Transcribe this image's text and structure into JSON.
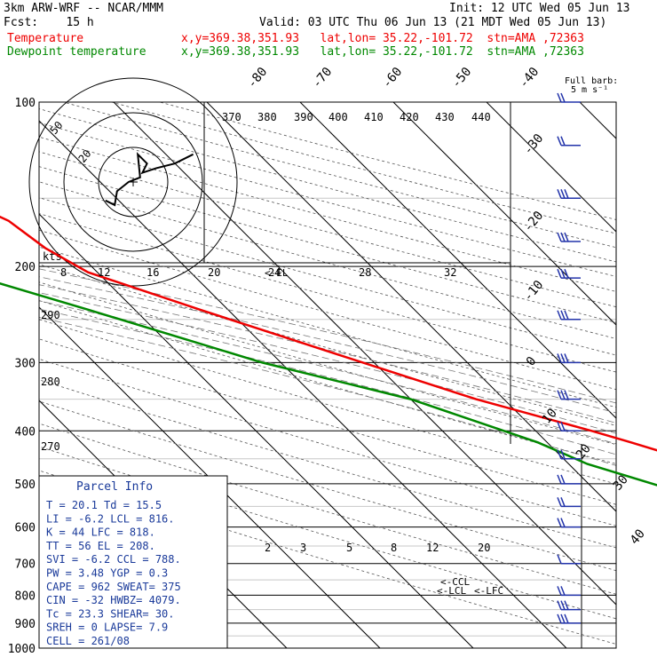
{
  "header": {
    "model": "3km ARW-WRF -- NCAR/MMM",
    "init": "Init: 12 UTC Wed 05 Jun 13",
    "fcst": "Fcst:    15 h",
    "valid": "Valid: 03 UTC Thu 06 Jun 13 (21 MDT Wed 05 Jun 13)",
    "temp_legend": "Temperature",
    "dew_legend": "Dewpoint temperature",
    "temp_loc": "x,y=369.38,351.93   lat,lon= 35.22,-101.72  stn=AMA ,72363",
    "dew_loc": "x,y=369.38,351.93   lat,lon= 35.22,-101.72  stn=AMA ,72363",
    "temp_color": "#ee0000",
    "dew_color": "#008800"
  },
  "parcel": {
    "title": "Parcel Info",
    "rows": [
      "T  =   20.1  Td =  15.5",
      "LI =   -6.2  LCL =  816.",
      "K  =     44  LFC = 818.",
      "TT =     56  EL  =  208.",
      "SVI =  -6.2  CCL = 788.",
      "PW =   3.48  YGP =  0.3",
      "CAPE =  962  SWEAT=  375",
      "CIN =   -32  HWBZ= 4079.",
      "Tc =   23.3  SHEAR=  30.",
      "SREH =    0  LAPSE=  7.9",
      "CELL = 261/08"
    ]
  },
  "barb_legend": {
    "title": "Full barb:",
    "value": "5 m s⁻¹"
  },
  "hodograph": {
    "speed_unit": "kts",
    "ring_labels": [
      "20",
      "50"
    ]
  },
  "markers": {
    "lcl": "<-LCL",
    "lfc": "<-LFC",
    "ccl": "<-CCL",
    "el": "<-EL"
  },
  "chart_data": {
    "type": "skew-t log-p sounding",
    "y_axis": {
      "label": "pressure (hPa)",
      "scale": "log",
      "ticks": [
        "100",
        "200",
        "300",
        "400",
        "500",
        "600",
        "700",
        "800",
        "900",
        "1000"
      ]
    },
    "x_axis": {
      "label": "temperature (°C)",
      "ticks": [
        "-80",
        "-70",
        "-60",
        "-50",
        "-40",
        "-30",
        "-20",
        "-10",
        "0",
        "10",
        "20",
        "30",
        "40"
      ]
    },
    "mixing_ratio_labels": [
      "2",
      "3",
      "5",
      "8",
      "12",
      "20"
    ],
    "theta_e_labels": [
      "370",
      "380",
      "390",
      "400",
      "410",
      "420",
      "430",
      "440"
    ],
    "hodo_inset_labels": [
      "8",
      "12",
      "16",
      "20",
      "24",
      "28",
      "32"
    ],
    "dry_adiabat_labels": [
      "290",
      "280",
      "270"
    ],
    "series": [
      {
        "name": "Temperature",
        "points": [
          [
            100,
            -69
          ],
          [
            115,
            -68
          ],
          [
            135,
            -70
          ],
          [
            165,
            -64
          ],
          [
            185,
            -63
          ],
          [
            205,
            -61
          ],
          [
            240,
            -53
          ],
          [
            290,
            -43
          ],
          [
            350,
            -33
          ],
          [
            400,
            -24
          ],
          [
            420,
            -21
          ],
          [
            450,
            -17
          ],
          [
            480,
            -13
          ],
          [
            510,
            -9
          ],
          [
            550,
            -4
          ],
          [
            590,
            0
          ],
          [
            640,
            4
          ],
          [
            700,
            8
          ],
          [
            760,
            13
          ],
          [
            820,
            15
          ],
          [
            840,
            17
          ],
          [
            890,
            21
          ]
        ]
      },
      {
        "name": "Dewpoint temperature",
        "points": [
          [
            100,
            -80
          ],
          [
            115,
            -82
          ],
          [
            130,
            -85
          ],
          [
            160,
            -80
          ],
          [
            180,
            -78
          ],
          [
            200,
            -76
          ],
          [
            240,
            -65
          ],
          [
            300,
            -52
          ],
          [
            350,
            -40
          ],
          [
            420,
            -31
          ],
          [
            460,
            -28
          ],
          [
            510,
            -22
          ],
          [
            560,
            -21
          ],
          [
            600,
            -18
          ],
          [
            640,
            -9
          ],
          [
            700,
            0
          ],
          [
            760,
            10
          ],
          [
            820,
            13
          ],
          [
            850,
            14
          ],
          [
            880,
            15
          ]
        ]
      }
    ],
    "hodograph_points": [
      [
        -12,
        -8
      ],
      [
        -8,
        -10
      ],
      [
        -7,
        -4
      ],
      [
        -2,
        0
      ],
      [
        3,
        2
      ],
      [
        2,
        12
      ],
      [
        6,
        8
      ],
      [
        4,
        4
      ],
      [
        10,
        6
      ],
      [
        18,
        8
      ],
      [
        26,
        12
      ]
    ],
    "wind_barbs": [
      {
        "p": 100,
        "kts": 20
      },
      {
        "p": 120,
        "kts": 20
      },
      {
        "p": 150,
        "kts": 25
      },
      {
        "p": 180,
        "kts": 25
      },
      {
        "p": 210,
        "kts": 30
      },
      {
        "p": 250,
        "kts": 30
      },
      {
        "p": 300,
        "kts": 30
      },
      {
        "p": 350,
        "kts": 25
      },
      {
        "p": 400,
        "kts": 20
      },
      {
        "p": 450,
        "kts": 20
      },
      {
        "p": 500,
        "kts": 15
      },
      {
        "p": 550,
        "kts": 15
      },
      {
        "p": 600,
        "kts": 15
      },
      {
        "p": 700,
        "kts": 10
      },
      {
        "p": 800,
        "kts": 20
      },
      {
        "p": 850,
        "kts": 25
      },
      {
        "p": 900,
        "kts": 25
      }
    ]
  }
}
